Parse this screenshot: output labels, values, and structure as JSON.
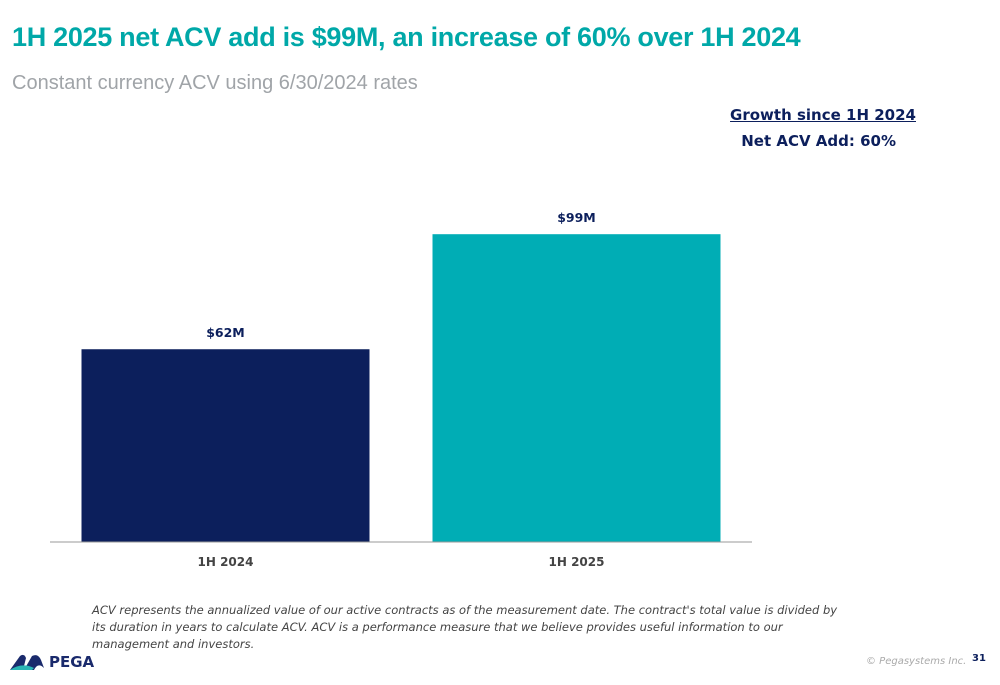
{
  "title": "1H 2025 net ACV add is $99M, an increase of 60% over 1H 2024",
  "subtitle": "Constant currency ACV using 6/30/2024 rates",
  "growth": {
    "heading": "Growth since 1H 2024",
    "value": "Net ACV Add: 60%"
  },
  "chart_data": {
    "type": "bar",
    "categories": [
      "1H 2024",
      "1H 2025"
    ],
    "values": [
      62,
      99
    ],
    "data_labels": [
      "$62M",
      "$99M"
    ],
    "colors": [
      "#0c1f5c",
      "#00adb5"
    ],
    "ylim": [
      0,
      110
    ],
    "grid": false,
    "unit": "$M"
  },
  "footnote": "ACV represents the annualized value of our active contracts as of the measurement date. The contract's total value is divided by its duration in years to calculate ACV. ACV is a performance measure that we believe provides useful information to our management and investors.",
  "logo": "PEGA",
  "copyright": "© Pegasystems Inc.",
  "page_number": "31"
}
